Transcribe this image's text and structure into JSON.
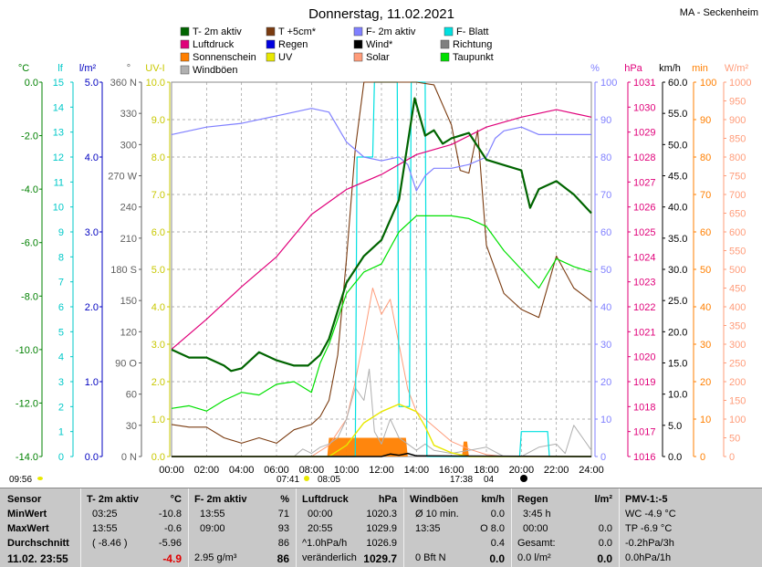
{
  "page": {
    "title": "Donnerstag, 11.02.2021",
    "station": "MA - Seckenheim"
  },
  "legend": [
    {
      "label": "T- 2m aktiv",
      "color": "#006400"
    },
    {
      "label": "T +5cm*",
      "color": "#7a3b10"
    },
    {
      "label": "F- 2m aktiv",
      "color": "#8080ff"
    },
    {
      "label": "F- Blatt",
      "color": "#00e0e0"
    },
    {
      "label": "Luftdruck",
      "color": "#e0007a"
    },
    {
      "label": "Regen",
      "color": "#0000e0"
    },
    {
      "label": "Wind*",
      "color": "#000000"
    },
    {
      "label": "Richtung",
      "color": "#808080"
    },
    {
      "label": "Sonnenschein",
      "color": "#ff7f00"
    },
    {
      "label": "UV",
      "color": "#e8e800"
    },
    {
      "label": "Solar",
      "color": "#ff9c7a"
    },
    {
      "label": "Taupunkt",
      "color": "#00e000"
    },
    {
      "label": "Windböen",
      "color": "#b0b0b0"
    }
  ],
  "axes": {
    "celsius": {
      "unit": "°C",
      "color": "#008000",
      "ticks": [
        "0.0",
        "-2.0",
        "-4.0",
        "-6.0",
        "-8.0",
        "-10.0",
        "-12.0",
        "-14.0"
      ]
    },
    "lf": {
      "unit": "lf",
      "color": "#00c8c8",
      "ticks": [
        "15",
        "14",
        "13",
        "12",
        "11",
        "10",
        "9",
        "8",
        "7",
        "6",
        "5",
        "4",
        "3",
        "2",
        "1",
        "0"
      ]
    },
    "rain": {
      "unit": "l/m²",
      "color": "#0000c0",
      "ticks": [
        "5.0",
        "4.0",
        "3.0",
        "2.0",
        "1.0",
        "0.0"
      ]
    },
    "direction": {
      "unit": "°",
      "color": "#606060",
      "ticks": [
        "360 N",
        "330",
        "300",
        "270 W",
        "240",
        "210",
        "180 S",
        "150",
        "120",
        "90 O",
        "60",
        "30",
        "0 N"
      ]
    },
    "uv": {
      "unit": "UV-I",
      "color": "#c8c800",
      "ticks": [
        "10.0",
        "9.0",
        "8.0",
        "7.0",
        "6.0",
        "5.0",
        "4.0",
        "3.0",
        "2.0",
        "1.0",
        "0.0"
      ]
    },
    "humidity": {
      "unit": "%",
      "color": "#8080ff",
      "ticks": [
        "100",
        "90",
        "80",
        "70",
        "60",
        "50",
        "40",
        "30",
        "20",
        "10",
        "0"
      ]
    },
    "pressure": {
      "unit": "hPa",
      "color": "#e0007a",
      "ticks": [
        "1031",
        "1030",
        "1029",
        "1028",
        "1027",
        "1026",
        "1025",
        "1024",
        "1023",
        "1022",
        "1021",
        "1020",
        "1019",
        "1018",
        "1017",
        "1016"
      ]
    },
    "wind": {
      "unit": "km/h",
      "color": "#000000",
      "ticks": [
        "60.0",
        "55.0",
        "50.0",
        "45.0",
        "40.0",
        "35.0",
        "30.0",
        "25.0",
        "20.0",
        "15.0",
        "10.0",
        "5.0",
        "0.0"
      ]
    },
    "minutes": {
      "unit": "min",
      "color": "#ff7f00",
      "ticks": [
        "100",
        "90",
        "80",
        "70",
        "60",
        "50",
        "40",
        "30",
        "20",
        "10",
        "0"
      ]
    },
    "solar": {
      "unit": "W/m²",
      "color": "#ff9c7a",
      "ticks": [
        "1000",
        "950",
        "900",
        "850",
        "800",
        "750",
        "700",
        "650",
        "600",
        "550",
        "500",
        "450",
        "400",
        "350",
        "300",
        "250",
        "200",
        "150",
        "100",
        "50",
        "0"
      ]
    },
    "time": {
      "ticks": [
        "00:00",
        "02:00",
        "04:00",
        "06:00",
        "08:00",
        "10:00",
        "12:00",
        "14:00",
        "16:00",
        "18:00",
        "20:00",
        "22:00",
        "24:00"
      ]
    }
  },
  "sun_events": {
    "moonrise": "09:56",
    "sunrise": "07:41",
    "sunrise_b": "08:05",
    "sunset": "17:38",
    "sunset_b": "04"
  },
  "chart_data": {
    "type": "line",
    "title": "Donnerstag, 11.02.2021",
    "x_unit": "hours",
    "xlim": [
      0,
      24
    ],
    "series": [
      {
        "name": "T- 2m aktiv",
        "axis": "°C",
        "ylim": [
          -14,
          0
        ],
        "x": [
          0,
          1,
          2,
          3,
          3.4,
          4,
          5,
          6,
          7,
          7.8,
          8.5,
          9,
          10,
          11,
          12,
          13,
          13.9,
          14.5,
          15,
          15.5,
          16,
          17,
          18,
          19,
          20,
          20.5,
          21,
          22,
          23,
          24
        ],
        "y": [
          -10,
          -10.3,
          -10.3,
          -10.6,
          -10.8,
          -10.7,
          -10.1,
          -10.4,
          -10.6,
          -10.6,
          -10.2,
          -9.6,
          -7.5,
          -6.5,
          -5.9,
          -4.4,
          -0.6,
          -2,
          -1.8,
          -2.3,
          -2.1,
          -1.9,
          -2.9,
          -3.1,
          -3.3,
          -4.7,
          -4,
          -3.7,
          -4.2,
          -4.9
        ]
      },
      {
        "name": "Taupunkt",
        "axis": "°C",
        "ylim": [
          -14,
          0
        ],
        "x": [
          0,
          1,
          2,
          3,
          4,
          5,
          6,
          7,
          8,
          8.5,
          9,
          10,
          11,
          12,
          13,
          14,
          15,
          16,
          17,
          18,
          19,
          20,
          21,
          22,
          23,
          24
        ],
        "y": [
          -12.2,
          -12.1,
          -12.3,
          -11.9,
          -11.6,
          -11.7,
          -11.3,
          -11.2,
          -11.6,
          -10.5,
          -9.8,
          -7.9,
          -7.1,
          -6.8,
          -5.6,
          -5,
          -5,
          -5,
          -5.1,
          -5.4,
          -6.3,
          -7,
          -7.7,
          -6.6,
          -6.9,
          -7.1
        ]
      },
      {
        "name": "T +5cm*",
        "axis": "°C",
        "ylim": [
          -14,
          0
        ],
        "x": [
          0,
          1,
          2,
          3,
          4,
          5,
          6,
          7,
          8,
          8.5,
          9,
          9.5,
          10,
          10.5,
          11,
          12,
          13,
          14,
          15,
          16,
          16.5,
          17,
          17.5,
          18,
          19,
          20,
          21,
          22,
          23,
          24
        ],
        "y": [
          -12.8,
          -12.9,
          -12.9,
          -13.3,
          -13.5,
          -13.3,
          -13.5,
          -13,
          -12.8,
          -12.5,
          -11.9,
          -10.2,
          -6.6,
          -2.5,
          0,
          0,
          0,
          0,
          -0.1,
          -1.6,
          -3.3,
          -3.4,
          -1.8,
          -6.1,
          -7.9,
          -8.5,
          -8.8,
          -6.5,
          -7.7,
          -8.2
        ]
      },
      {
        "name": "Luftdruck",
        "axis": "hPa",
        "ylim": [
          1016,
          1031
        ],
        "x": [
          0,
          2,
          4,
          6,
          8,
          10,
          12,
          14,
          16,
          18,
          20,
          22,
          24
        ],
        "y": [
          1020.3,
          1021.5,
          1022.8,
          1024.0,
          1025.7,
          1026.7,
          1027.3,
          1028.1,
          1028.5,
          1029.2,
          1029.6,
          1029.9,
          1029.6
        ]
      },
      {
        "name": "F- 2m aktiv",
        "axis": "%",
        "ylim": [
          0,
          100
        ],
        "x": [
          0,
          2,
          4,
          6,
          7,
          8,
          9,
          9.5,
          10,
          11,
          12,
          13,
          13.5,
          14,
          14.5,
          15,
          16,
          17,
          18,
          18.5,
          19,
          20,
          21,
          22,
          23,
          24
        ],
        "y": [
          86,
          88,
          89,
          91,
          92,
          93,
          92,
          88,
          84,
          80,
          79,
          80,
          78,
          71,
          75,
          77,
          77,
          78,
          80,
          85,
          87,
          88,
          86,
          86,
          86,
          86
        ]
      },
      {
        "name": "Windböen",
        "axis": "km/h",
        "ylim": [
          0,
          60
        ],
        "x": [
          0,
          7,
          7.5,
          8,
          8.5,
          9,
          9.5,
          10,
          10.5,
          11,
          11.3,
          11.6,
          12,
          12.5,
          13,
          13.5,
          14,
          14.5,
          15,
          16,
          17,
          18,
          19,
          20,
          21,
          22,
          22.5,
          23,
          24
        ],
        "y": [
          0,
          0,
          1.2,
          0.5,
          1.5,
          2,
          3,
          6,
          11,
          9,
          14,
          4,
          2,
          6,
          3,
          2,
          1,
          2,
          1,
          0.5,
          1,
          1.5,
          0,
          0,
          1.5,
          2,
          0.5,
          5,
          1
        ]
      },
      {
        "name": "Sonnenschein",
        "axis": "min",
        "ylim": [
          0,
          100
        ],
        "x": [
          8.9,
          9,
          13.4,
          13.5,
          16.6,
          16.7,
          16.9,
          17
        ],
        "y": [
          0,
          5,
          5,
          0,
          0,
          4,
          4,
          0
        ]
      },
      {
        "name": "Solar",
        "axis": "W/m²",
        "ylim": [
          0,
          1000
        ],
        "x": [
          8,
          9,
          10,
          10.5,
          11,
          11.5,
          12,
          12.5,
          13,
          13.5,
          14,
          15,
          16,
          17,
          18,
          19,
          20,
          21,
          22,
          23,
          24
        ],
        "y": [
          0,
          30,
          100,
          200,
          320,
          450,
          380,
          420,
          300,
          180,
          120,
          80,
          40,
          20,
          5,
          0,
          0,
          0,
          0,
          0,
          0
        ]
      },
      {
        "name": "F- Blatt",
        "axis": "lf",
        "ylim": [
          0,
          15
        ],
        "x": [
          0,
          10.5,
          10.6,
          11.5,
          11.6,
          12.9,
          13,
          13.6,
          13.7,
          14.5,
          14.6,
          16.9,
          17,
          19.9,
          20,
          21.5,
          21.6,
          24
        ],
        "y": [
          0,
          0,
          12,
          12,
          15,
          15,
          2,
          2,
          15,
          15,
          0,
          0,
          0,
          0,
          1,
          1,
          0,
          0
        ]
      },
      {
        "name": "UV",
        "axis": "UV-I",
        "ylim": [
          0,
          10
        ],
        "x": [
          0,
          9,
          10,
          11,
          12,
          13,
          13.5,
          14,
          14.5,
          15,
          16,
          17,
          24
        ],
        "y": [
          0,
          0,
          0.3,
          0.9,
          1.2,
          1.4,
          1.3,
          1.2,
          0.8,
          0.3,
          0.1,
          0,
          0
        ]
      },
      {
        "name": "Wind*",
        "axis": "km/h",
        "ylim": [
          0,
          60
        ],
        "x": [
          0,
          12,
          12.5,
          13,
          13.5,
          14,
          24
        ],
        "y": [
          0,
          0,
          0.4,
          0.2,
          0.5,
          0.1,
          0
        ]
      }
    ]
  },
  "table": {
    "columns": [
      {
        "header": "Sensor",
        "rows": [
          "MinWert",
          "MaxWert",
          "Durchschnitt",
          "11.02. 23:55"
        ]
      },
      {
        "header": "T- 2m aktiv",
        "unit": "°C",
        "rows": [
          [
            "03:25",
            "-10.8"
          ],
          [
            "13:55",
            "-0.6"
          ],
          [
            "( -8.46 )",
            "-5.96"
          ],
          [
            "",
            "-4.9"
          ]
        ]
      },
      {
        "header": "F- 2m aktiv",
        "unit": "%",
        "rows": [
          [
            "13:55",
            "71"
          ],
          [
            "09:00",
            "93"
          ],
          [
            "",
            "86"
          ],
          [
            "2.95 g/m³",
            "86"
          ]
        ]
      },
      {
        "header": "Luftdruck",
        "unit": "hPa",
        "rows": [
          [
            "00:00",
            "1020.3"
          ],
          [
            "20:55",
            "1029.9"
          ],
          [
            "^1.0hPa/h",
            "1026.9"
          ],
          [
            "veränderlich",
            "1029.7"
          ]
        ]
      },
      {
        "header": "Windböen",
        "unit": "km/h",
        "rows": [
          [
            "Ø 10 min.",
            "0.0"
          ],
          [
            "13:35",
            "O 8.0"
          ],
          [
            "",
            "0.4"
          ],
          [
            "0 Bft N",
            "0.0"
          ]
        ]
      },
      {
        "header": "Regen",
        "unit": "l/m²",
        "rows": [
          [
            "3:45 h",
            ""
          ],
          [
            "00:00",
            "0.0"
          ],
          [
            "Gesamt:",
            "0.0"
          ],
          [
            "0.0 l/m²",
            "0.0"
          ]
        ]
      },
      {
        "header": "PMV-1:-5",
        "unit": "",
        "rows": [
          [
            "WC -4.9 °C",
            ""
          ],
          [
            "TP -6.9 °C",
            ""
          ],
          [
            "-0.2hPa/3h",
            ""
          ],
          [
            "0.0hPa/1h",
            ""
          ]
        ]
      }
    ]
  }
}
